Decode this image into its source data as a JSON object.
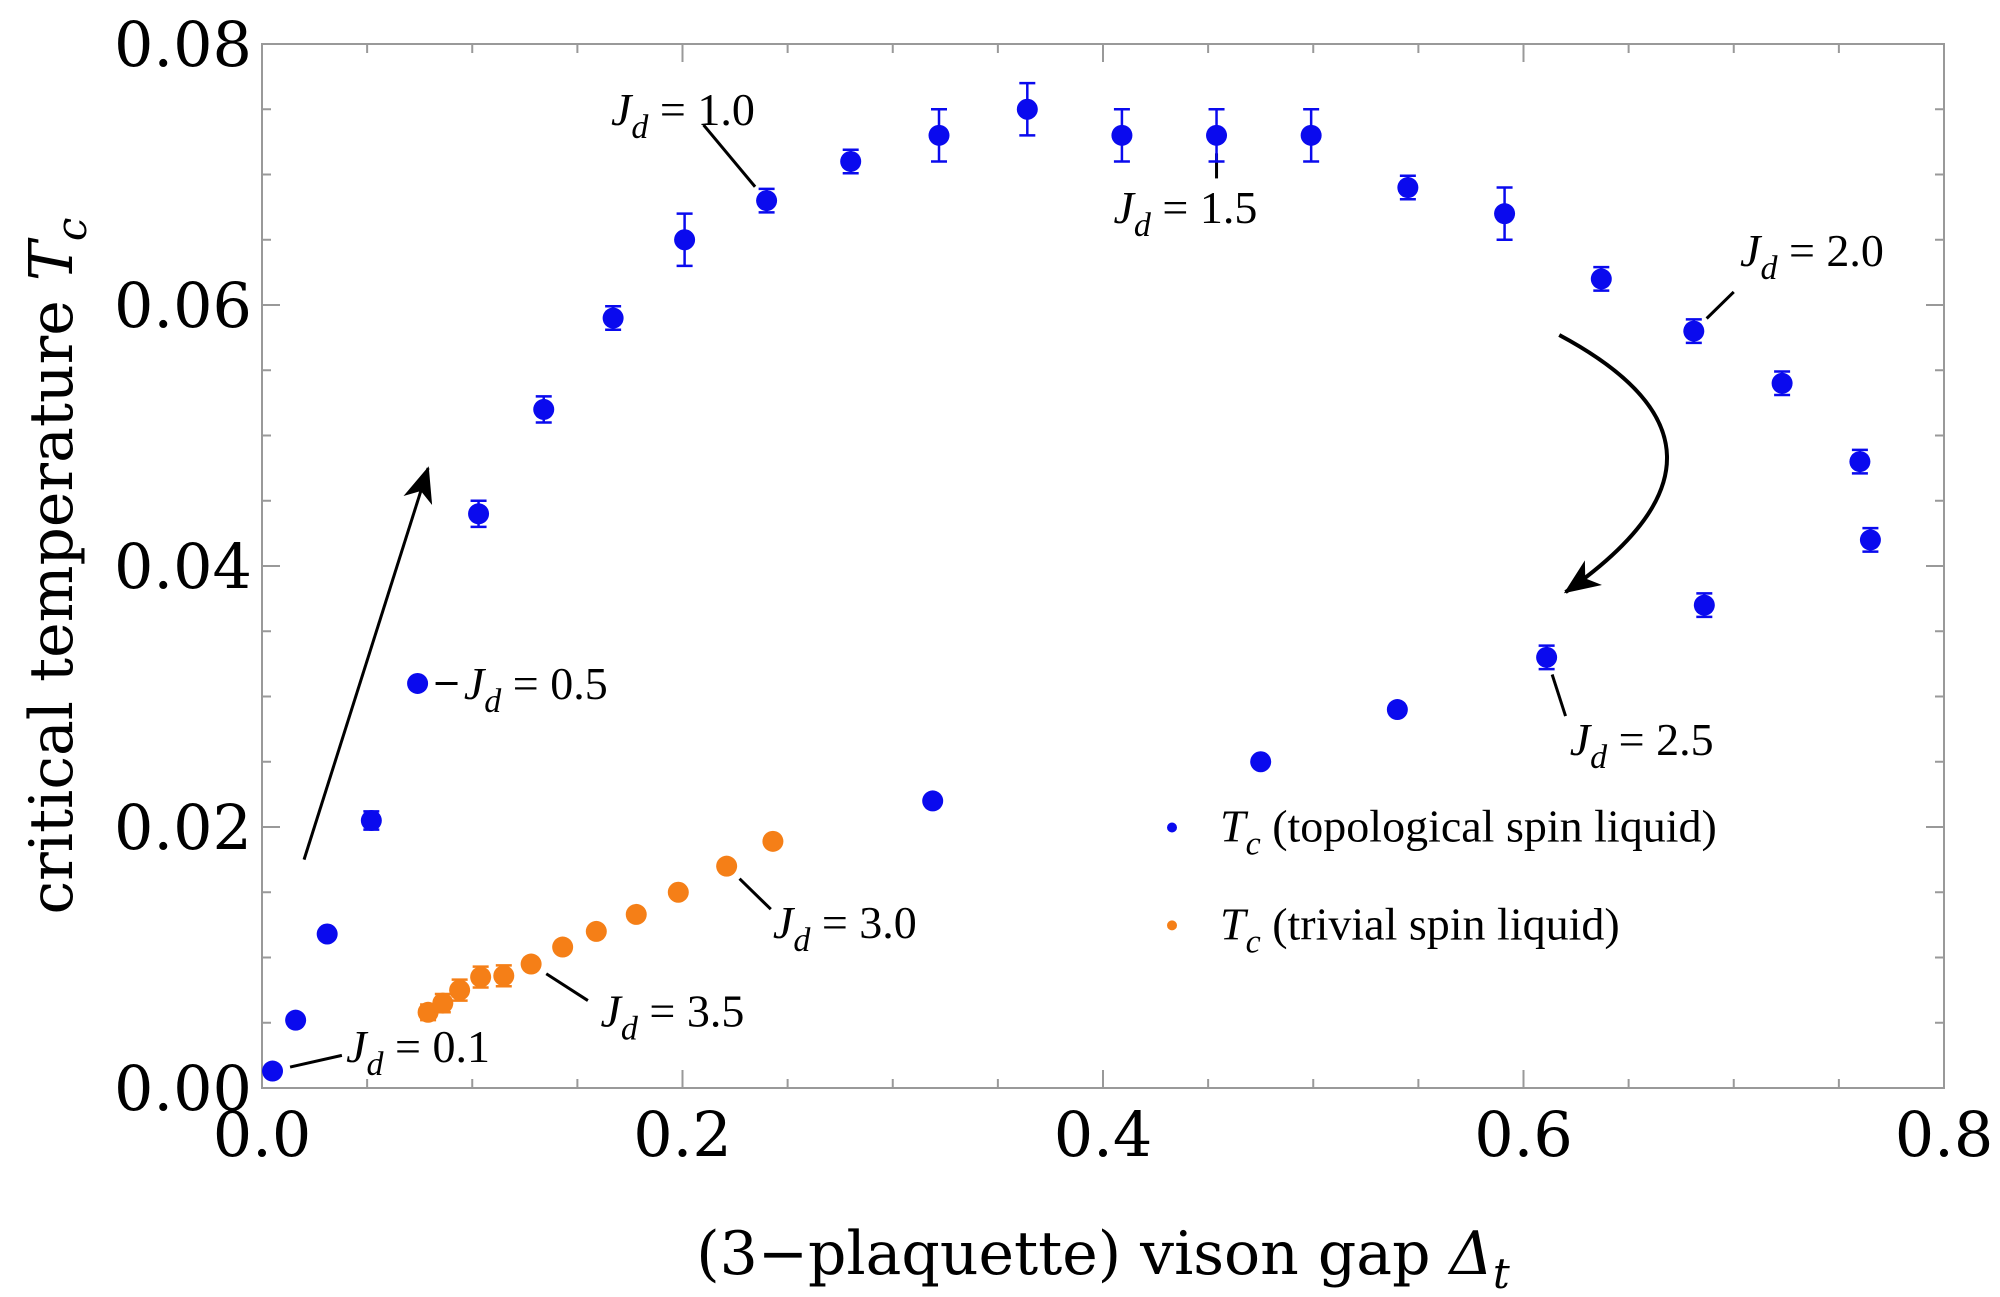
{
  "chart_data": {
    "type": "scatter",
    "xlabel": "(3−plaquette) vison gap Δt",
    "xlabel_main": "(3−plaquette) vison gap ",
    "xlabel_symbol": "Δ",
    "xlabel_sub": "t",
    "ylabel": "critical temperature Tc",
    "ylabel_main": "critical temperature ",
    "ylabel_symbol": "T",
    "ylabel_sub": "c",
    "xlim": [
      0,
      0.8
    ],
    "ylim": [
      0,
      0.08
    ],
    "x_ticks": [
      "0.0",
      "0.2",
      "0.4",
      "0.6",
      "0.8"
    ],
    "y_ticks": [
      "0.00",
      "0.02",
      "0.04",
      "0.06",
      "0.08"
    ],
    "grid": false,
    "legend_position": "bottom-right",
    "series": [
      {
        "name": "Tc (topological spin liquid)",
        "legend_symbol": "T",
        "legend_sub": "c",
        "legend_rest": " (topological spin liquid)",
        "color": "#0a0aee",
        "points": [
          {
            "x": 0.005,
            "y": 0.0013,
            "err": 0
          },
          {
            "x": 0.016,
            "y": 0.0052,
            "err": 0
          },
          {
            "x": 0.031,
            "y": 0.0118,
            "err": 0
          },
          {
            "x": 0.052,
            "y": 0.0205,
            "err": 0.0007
          },
          {
            "x": 0.074,
            "y": 0.031,
            "err": 0.0004
          },
          {
            "x": 0.103,
            "y": 0.044,
            "err": 0.001
          },
          {
            "x": 0.134,
            "y": 0.052,
            "err": 0.001
          },
          {
            "x": 0.167,
            "y": 0.059,
            "err": 0.0009
          },
          {
            "x": 0.201,
            "y": 0.065,
            "err": 0.002
          },
          {
            "x": 0.24,
            "y": 0.068,
            "err": 0.0009
          },
          {
            "x": 0.28,
            "y": 0.071,
            "err": 0.0009
          },
          {
            "x": 0.322,
            "y": 0.073,
            "err": 0.002
          },
          {
            "x": 0.364,
            "y": 0.075,
            "err": 0.002
          },
          {
            "x": 0.409,
            "y": 0.073,
            "err": 0.002
          },
          {
            "x": 0.454,
            "y": 0.073,
            "err": 0.002
          },
          {
            "x": 0.499,
            "y": 0.073,
            "err": 0.002
          },
          {
            "x": 0.545,
            "y": 0.069,
            "err": 0.0009
          },
          {
            "x": 0.591,
            "y": 0.067,
            "err": 0.002
          },
          {
            "x": 0.637,
            "y": 0.062,
            "err": 0.0009
          },
          {
            "x": 0.681,
            "y": 0.058,
            "err": 0.0009
          },
          {
            "x": 0.723,
            "y": 0.054,
            "err": 0.0009
          },
          {
            "x": 0.76,
            "y": 0.048,
            "err": 0.0009
          },
          {
            "x": 0.765,
            "y": 0.042,
            "err": 0.0009
          },
          {
            "x": 0.686,
            "y": 0.037,
            "err": 0.0009
          },
          {
            "x": 0.611,
            "y": 0.033,
            "err": 0.0009
          },
          {
            "x": 0.54,
            "y": 0.029,
            "err": 0
          },
          {
            "x": 0.475,
            "y": 0.025,
            "err": 0
          },
          {
            "x": 0.319,
            "y": 0.022,
            "err": 0
          }
        ]
      },
      {
        "name": "Tc (trivial spin liquid)",
        "legend_symbol": "T",
        "legend_sub": "c",
        "legend_rest": " (trivial spin liquid)",
        "color": "#f57f17",
        "points": [
          {
            "x": 0.079,
            "y": 0.0058,
            "err": 0.0006
          },
          {
            "x": 0.086,
            "y": 0.0065,
            "err": 0.0007
          },
          {
            "x": 0.094,
            "y": 0.0075,
            "err": 0.0008
          },
          {
            "x": 0.104,
            "y": 0.0085,
            "err": 0.0008
          },
          {
            "x": 0.115,
            "y": 0.0086,
            "err": 0.0008
          },
          {
            "x": 0.128,
            "y": 0.0095,
            "err": 0
          },
          {
            "x": 0.143,
            "y": 0.0108,
            "err": 0
          },
          {
            "x": 0.159,
            "y": 0.012,
            "err": 0
          },
          {
            "x": 0.178,
            "y": 0.0133,
            "err": 0
          },
          {
            "x": 0.198,
            "y": 0.015,
            "err": 0
          },
          {
            "x": 0.221,
            "y": 0.017,
            "err": 0
          },
          {
            "x": 0.243,
            "y": 0.0189,
            "err": 0
          }
        ]
      }
    ],
    "annotations": [
      {
        "id": "jd-0-1",
        "sym": "J",
        "sub": "d",
        "rest": " = 0.1",
        "x": 0.005,
        "y": 0.0013,
        "to": [
          0.038,
          0.0025
        ],
        "label": [
          0.04,
          0.002
        ]
      },
      {
        "id": "jd-0-5",
        "sym": "J",
        "sub": "d",
        "rest": " = 0.5",
        "x": 0.074,
        "y": 0.031,
        "to": [
          0.093,
          0.031
        ],
        "label": [
          0.096,
          0.0298
        ]
      },
      {
        "id": "jd-1-0",
        "sym": "J",
        "sub": "d",
        "rest": " = 1.0",
        "x": 0.24,
        "y": 0.068,
        "to": [
          0.21,
          0.0738
        ],
        "label": [
          0.166,
          0.0738
        ]
      },
      {
        "id": "jd-1-5",
        "sym": "J",
        "sub": "d",
        "rest": " = 1.5",
        "x": 0.454,
        "y": 0.073,
        "to": [
          0.454,
          0.0697
        ],
        "label": [
          0.405,
          0.0663
        ]
      },
      {
        "id": "jd-2-0",
        "sym": "J",
        "sub": "d",
        "rest": " = 2.0",
        "x": 0.681,
        "y": 0.058,
        "to": [
          0.7,
          0.061
        ],
        "label": [
          0.703,
          0.063
        ]
      },
      {
        "id": "jd-2-5",
        "sym": "J",
        "sub": "d",
        "rest": " = 2.5",
        "x": 0.611,
        "y": 0.033,
        "to": [
          0.62,
          0.0285
        ],
        "label": [
          0.622,
          0.0255
        ]
      },
      {
        "id": "jd-3-0",
        "sym": "J",
        "sub": "d",
        "rest": " = 3.0",
        "x": 0.221,
        "y": 0.017,
        "to": [
          0.242,
          0.0137
        ],
        "label": [
          0.243,
          0.0115
        ]
      },
      {
        "id": "jd-3-5",
        "sym": "J",
        "sub": "d",
        "rest": " = 3.5",
        "x": 0.128,
        "y": 0.0095,
        "to": [
          0.155,
          0.0067
        ],
        "label": [
          0.161,
          0.0047
        ]
      }
    ],
    "arrows": [
      {
        "id": "arrow-increasing",
        "path": [
          [
            0.02,
            0.0175
          ],
          [
            0.079,
            0.0475
          ]
        ]
      },
      {
        "id": "arrow-curved",
        "path": [
          [
            0.617,
            0.0577
          ],
          [
            0.718,
            0.049
          ],
          [
            0.62,
            0.038
          ]
        ]
      }
    ]
  }
}
